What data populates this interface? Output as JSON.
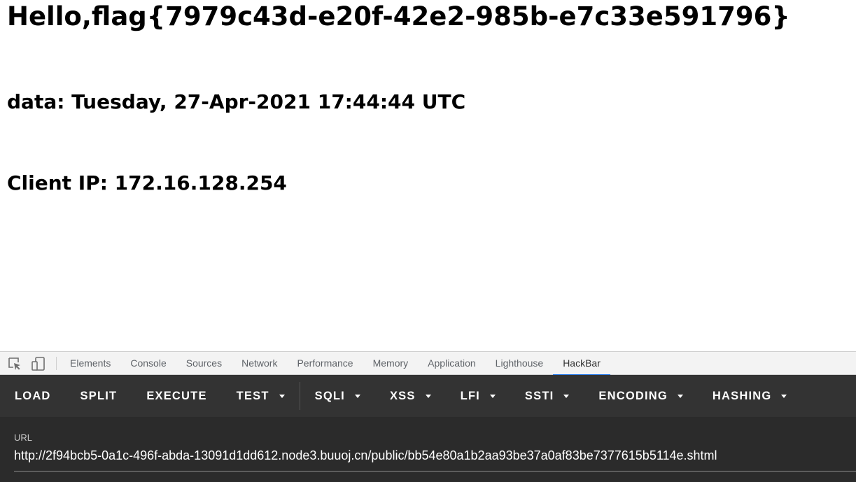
{
  "page": {
    "greeting": "Hello,flag{7979c43d-e20f-42e2-985b-e7c33e591796}",
    "date_line": "data: Tuesday, 27-Apr-2021 17:44:44 UTC",
    "ip_line": "Client IP: 172.16.128.254"
  },
  "devtools": {
    "icons": [
      "inspect-element-icon",
      "device-toolbar-icon"
    ],
    "tabs": [
      {
        "label": "Elements",
        "active": false
      },
      {
        "label": "Console",
        "active": false
      },
      {
        "label": "Sources",
        "active": false
      },
      {
        "label": "Network",
        "active": false
      },
      {
        "label": "Performance",
        "active": false
      },
      {
        "label": "Memory",
        "active": false
      },
      {
        "label": "Application",
        "active": false
      },
      {
        "label": "Lighthouse",
        "active": false
      },
      {
        "label": "HackBar",
        "active": true
      }
    ],
    "accent_color": "#1a73e8"
  },
  "hackbar": {
    "buttons": [
      {
        "label": "LOAD",
        "dropdown": false
      },
      {
        "label": "SPLIT",
        "dropdown": false
      },
      {
        "label": "EXECUTE",
        "dropdown": false
      },
      {
        "label": "TEST",
        "dropdown": true
      },
      {
        "label": "SQLI",
        "dropdown": true
      },
      {
        "label": "XSS",
        "dropdown": true
      },
      {
        "label": "LFI",
        "dropdown": true
      },
      {
        "label": "SSTI",
        "dropdown": true
      },
      {
        "label": "ENCODING",
        "dropdown": true
      },
      {
        "label": "HASHING",
        "dropdown": true
      }
    ],
    "url_label": "URL",
    "url_value": "http://2f94bcb5-0a1c-496f-abda-13091d1dd612.node3.buuoj.cn/public/bb54e80a1b2aa93be37a0af83be7377615b5114e.shtml",
    "background": "#333333"
  }
}
